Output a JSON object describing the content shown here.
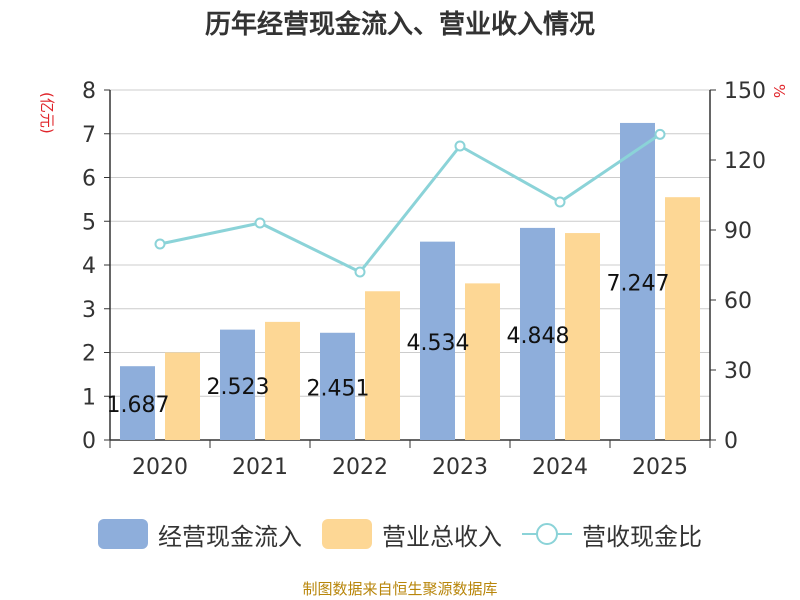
{
  "title": "历年经营现金流入、营业收入情况",
  "source": "制图数据来自恒生聚源数据库",
  "colors": {
    "cash_inflow": "#8eaedb",
    "revenue": "#fdd795",
    "ratio": "#8bd3d8",
    "unit_label": "#e0242a",
    "source_text": "#b8860b"
  },
  "chart_data": {
    "type": "bar",
    "categories": [
      "2020",
      "2021",
      "2022",
      "2023",
      "2024",
      "2025"
    ],
    "series": [
      {
        "name": "经营现金流入",
        "type": "bar",
        "axis": "left",
        "values": [
          1.687,
          2.523,
          2.451,
          4.534,
          4.848,
          7.247
        ],
        "labels": [
          "1.687",
          "2.523",
          "2.451",
          "4.534",
          "4.848",
          "7.247"
        ]
      },
      {
        "name": "营业总收入",
        "type": "bar",
        "axis": "left",
        "values": [
          2.0,
          2.7,
          3.4,
          3.58,
          4.73,
          5.55
        ]
      },
      {
        "name": "营收现金比",
        "type": "line",
        "axis": "right",
        "values": [
          84,
          93,
          72,
          126,
          102,
          131
        ]
      }
    ],
    "y_left": {
      "label": "(亿元)",
      "min": 0,
      "max": 8,
      "ticks": [
        "0",
        "1",
        "2",
        "3",
        "4",
        "5",
        "6",
        "7",
        "8"
      ]
    },
    "y_right": {
      "label": "%",
      "min": 0,
      "max": 150,
      "ticks": [
        "0",
        "30",
        "60",
        "90",
        "120",
        "150"
      ]
    },
    "grid": true,
    "legend_position": "bottom"
  }
}
